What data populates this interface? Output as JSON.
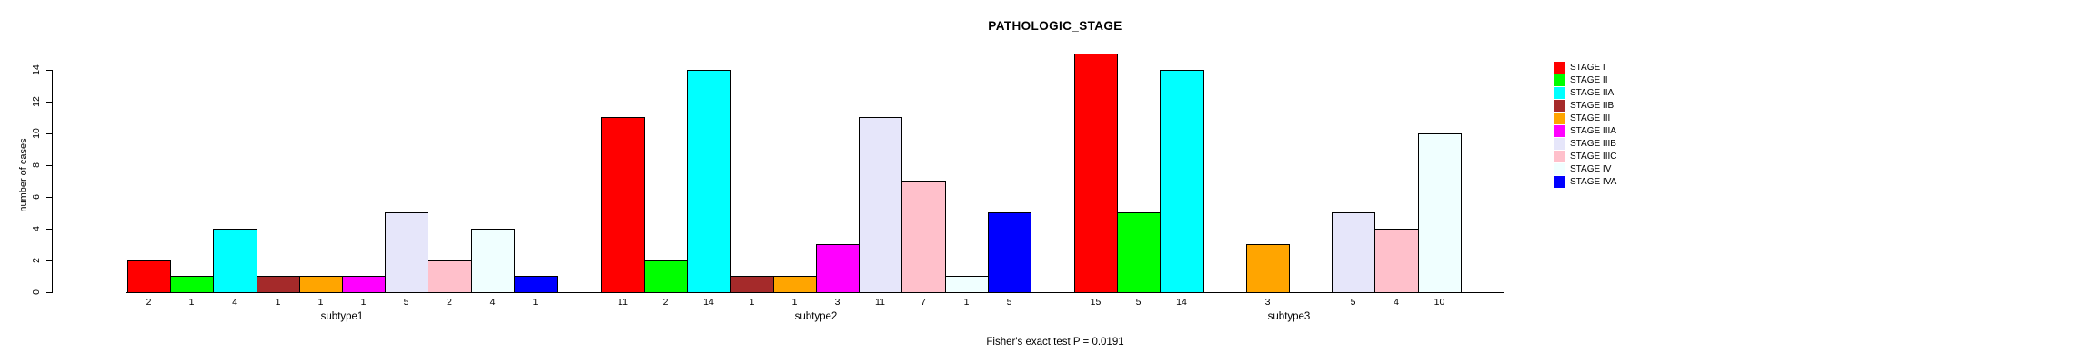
{
  "title": "PATHOLOGIC_STAGE",
  "footer": "Fisher's exact test P = 0.0191",
  "chart_data": {
    "type": "bar",
    "title": "PATHOLOGIC_STAGE",
    "ylabel": "number of cases",
    "xlabel": "",
    "ylim": [
      0,
      14
    ],
    "yticks": [
      0,
      2,
      4,
      6,
      8,
      10,
      12,
      14
    ],
    "grid": false,
    "legend_position": "right",
    "legend": [
      {
        "label": "STAGE I",
        "color": "#FF0000"
      },
      {
        "label": "STAGE II",
        "color": "#00FF00"
      },
      {
        "label": "STAGE IIA",
        "color": "#00FFFF"
      },
      {
        "label": "STAGE IIB",
        "color": "#A52A2A"
      },
      {
        "label": "STAGE III",
        "color": "#FFA500"
      },
      {
        "label": "STAGE IIIA",
        "color": "#FF00FF"
      },
      {
        "label": "STAGE IIIB",
        "color": "#E6E6FA"
      },
      {
        "label": "STAGE IIIC",
        "color": "#FFC0CB"
      },
      {
        "label": "STAGE IV",
        "color": "#F0FFFF"
      },
      {
        "label": "STAGE IVA",
        "color": "#0000FF"
      }
    ],
    "groups": [
      {
        "label": "subtype1",
        "values": [
          2,
          1,
          4,
          1,
          1,
          1,
          5,
          2,
          4,
          1
        ]
      },
      {
        "label": "subtype2",
        "values": [
          11,
          2,
          14,
          1,
          1,
          3,
          11,
          7,
          1,
          5
        ]
      },
      {
        "label": "subtype3",
        "values": [
          15,
          5,
          14,
          0,
          3,
          0,
          5,
          4,
          10,
          0
        ]
      }
    ],
    "bar_value_labels_shown": true,
    "annotation": "Fisher's exact test P = 0.0191"
  }
}
